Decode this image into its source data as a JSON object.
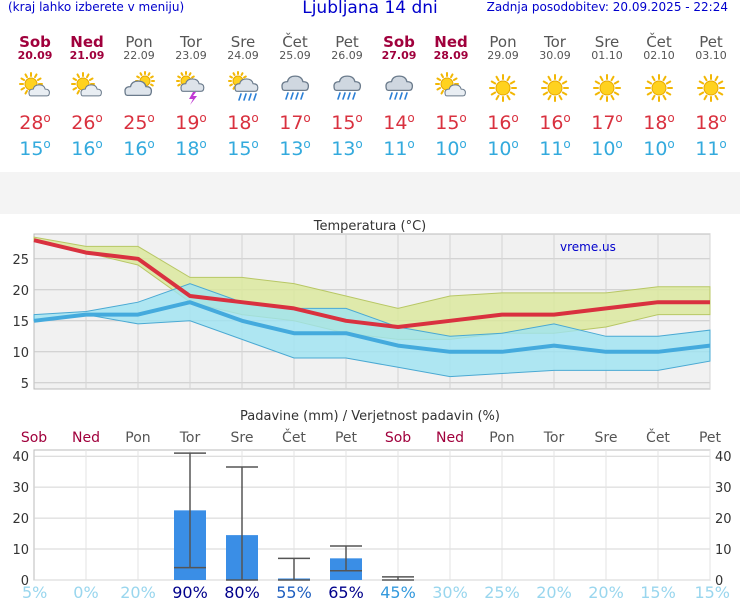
{
  "header": {
    "menu_hint": "(kraj lahko izberete v meniju)",
    "title": "Ljubljana 14 dni",
    "updated": "Zadnja posodobitev: 20.09.2025 - 22:24"
  },
  "days": [
    {
      "name": "Sob",
      "date": "20.09",
      "weekend": true,
      "icon": "partly-sunny-icon",
      "tmax": 28,
      "tmin": 15
    },
    {
      "name": "Ned",
      "date": "21.09",
      "weekend": true,
      "icon": "partly-sunny-icon",
      "tmax": 26,
      "tmin": 16
    },
    {
      "name": "Pon",
      "date": "22.09",
      "weekend": false,
      "icon": "mostly-cloudy-icon",
      "tmax": 25,
      "tmin": 16
    },
    {
      "name": "Tor",
      "date": "23.09",
      "weekend": false,
      "icon": "thunderstorm-icon",
      "tmax": 19,
      "tmin": 18
    },
    {
      "name": "Sre",
      "date": "24.09",
      "weekend": false,
      "icon": "sun-rain-icon",
      "tmax": 18,
      "tmin": 15
    },
    {
      "name": "Čet",
      "date": "25.09",
      "weekend": false,
      "icon": "rain-cloud-icon",
      "tmax": 17,
      "tmin": 13
    },
    {
      "name": "Pet",
      "date": "26.09",
      "weekend": false,
      "icon": "rain-cloud-icon",
      "tmax": 15,
      "tmin": 13
    },
    {
      "name": "Sob",
      "date": "27.09",
      "weekend": true,
      "icon": "rain-cloud-icon",
      "tmax": 14,
      "tmin": 11
    },
    {
      "name": "Ned",
      "date": "28.09",
      "weekend": true,
      "icon": "partly-sunny-icon",
      "tmax": 15,
      "tmin": 10
    },
    {
      "name": "Pon",
      "date": "29.09",
      "weekend": false,
      "icon": "sun-icon",
      "tmax": 16,
      "tmin": 10
    },
    {
      "name": "Tor",
      "date": "30.09",
      "weekend": false,
      "icon": "sun-icon",
      "tmax": 16,
      "tmin": 11
    },
    {
      "name": "Sre",
      "date": "01.10",
      "weekend": false,
      "icon": "sun-icon",
      "tmax": 17,
      "tmin": 10
    },
    {
      "name": "Čet",
      "date": "02.10",
      "weekend": false,
      "icon": "sun-icon",
      "tmax": 18,
      "tmin": 10
    },
    {
      "name": "Pet",
      "date": "03.10",
      "weekend": false,
      "icon": "sun-icon",
      "tmax": 18,
      "tmin": 11
    }
  ],
  "chart_data": [
    {
      "type": "line",
      "title": "Temperatura (°C)",
      "watermark": "vreme.us",
      "ylim": [
        4,
        29
      ],
      "yticks": [
        5,
        10,
        15,
        20,
        25
      ],
      "x": [
        0,
        1,
        2,
        3,
        4,
        5,
        6,
        7,
        8,
        9,
        10,
        11,
        12,
        13
      ],
      "series": [
        {
          "values": [
            28,
            26,
            25,
            19,
            18,
            17,
            15,
            14,
            15,
            16,
            16,
            17,
            18,
            18
          ],
          "color": "#d9313f"
        },
        {
          "values": [
            15,
            16,
            16,
            18,
            15,
            13,
            13,
            11,
            10,
            10,
            11,
            10,
            10,
            11
          ],
          "color": "#44aadd"
        }
      ],
      "bands": [
        {
          "lower": [
            28,
            26,
            24,
            18,
            16,
            15,
            13,
            12,
            12,
            13,
            13,
            14,
            16,
            16
          ],
          "upper": [
            28.5,
            27,
            27,
            22,
            22,
            21,
            19,
            17,
            19,
            19.5,
            19.5,
            19.5,
            20.5,
            20.5
          ],
          "color": "#dbe99a"
        },
        {
          "lower": [
            15,
            16,
            14.5,
            15,
            12,
            9,
            9,
            7.5,
            6,
            6.5,
            7,
            7,
            7,
            8.5
          ],
          "upper": [
            16,
            16.5,
            18,
            21,
            18,
            17,
            17,
            14,
            12.5,
            13,
            14.5,
            12.5,
            12.5,
            13.5
          ],
          "color": "#9de3f2"
        }
      ],
      "grid": true
    },
    {
      "type": "bar",
      "title": "Padavine (mm) / Verjetnost padavin (%)",
      "categories": [
        "Sob",
        "Ned",
        "Pon",
        "Tor",
        "Sre",
        "Čet",
        "Pet",
        "Sob",
        "Ned",
        "Pon",
        "Tor",
        "Sre",
        "Čet",
        "Pet"
      ],
      "weekend": [
        true,
        true,
        false,
        false,
        false,
        false,
        false,
        true,
        true,
        false,
        false,
        false,
        false,
        false
      ],
      "values": [
        0,
        0,
        0,
        22.5,
        14.5,
        0.5,
        7,
        0,
        0,
        0,
        0,
        0,
        0,
        0
      ],
      "error_low": [
        0,
        0,
        0,
        4,
        0,
        0,
        3,
        0,
        0,
        0,
        0,
        0,
        0,
        0
      ],
      "error_high": [
        0,
        0,
        0,
        41,
        36.5,
        7,
        11,
        1,
        0,
        0,
        0,
        0,
        0,
        0
      ],
      "probability": [
        "5%",
        "0%",
        "20%",
        "90%",
        "80%",
        "55%",
        "65%",
        "45%",
        "30%",
        "25%",
        "20%",
        "20%",
        "15%",
        "15%"
      ],
      "ylim": [
        0,
        42
      ],
      "yticks": [
        0,
        10,
        20,
        30,
        40
      ],
      "grid": true
    }
  ],
  "colors": {
    "weekend": "#a0003c",
    "weekday": "#555555",
    "tmax": "#d9313f",
    "tmin": "#33aadd",
    "bar": "#3a8ee6"
  }
}
